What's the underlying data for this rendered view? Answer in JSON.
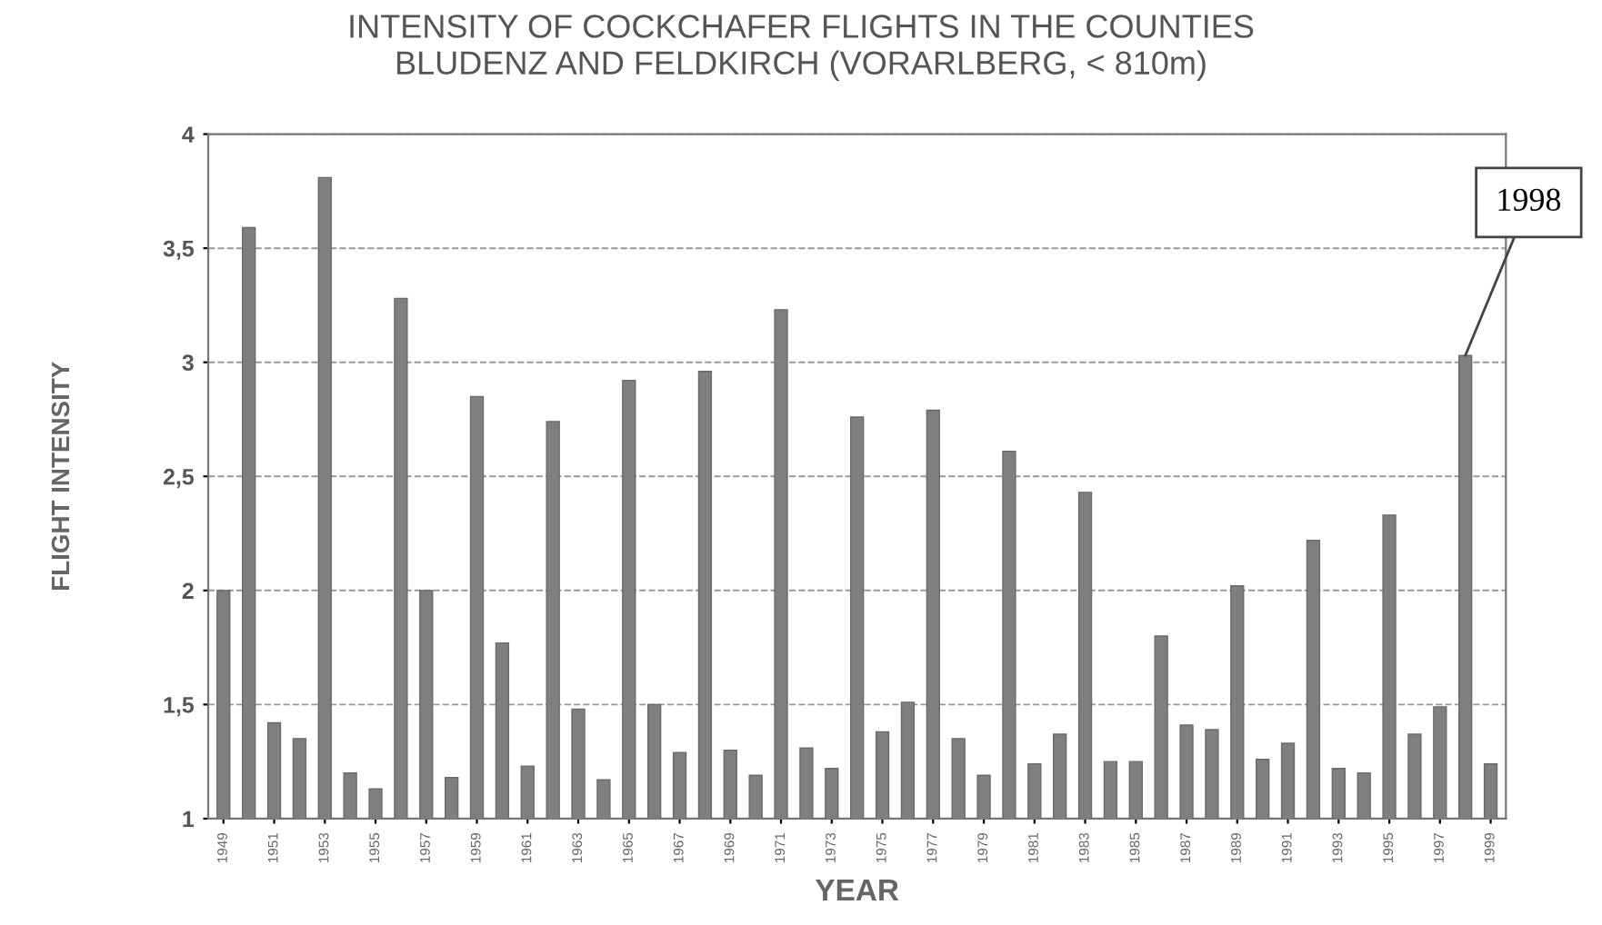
{
  "chart_data": {
    "type": "bar",
    "title": "INTENSITY OF COCKCHAFER FLIGHTS IN THE COUNTIES\nBLUDENZ AND FELDKIRCH (VORARLBERG, < 810m)",
    "xlabel": "YEAR",
    "ylabel": "FLIGHT INTENSITY",
    "x": [
      1949,
      1950,
      1951,
      1952,
      1953,
      1954,
      1955,
      1956,
      1957,
      1958,
      1959,
      1960,
      1961,
      1962,
      1963,
      1964,
      1965,
      1966,
      1967,
      1968,
      1969,
      1970,
      1971,
      1972,
      1973,
      1974,
      1975,
      1976,
      1977,
      1978,
      1979,
      1980,
      1981,
      1982,
      1983,
      1984,
      1985,
      1986,
      1987,
      1988,
      1989,
      1990,
      1991,
      1992,
      1993,
      1994,
      1995,
      1996,
      1997,
      1998,
      1999
    ],
    "values": [
      2.0,
      3.59,
      1.42,
      1.35,
      3.81,
      1.2,
      1.13,
      3.28,
      2.0,
      1.18,
      2.85,
      1.77,
      1.23,
      2.74,
      1.48,
      1.17,
      2.92,
      1.5,
      1.29,
      2.96,
      1.3,
      1.19,
      3.23,
      1.31,
      1.22,
      2.76,
      1.38,
      1.51,
      2.79,
      1.35,
      1.19,
      2.61,
      1.24,
      1.37,
      2.43,
      1.25,
      1.25,
      1.8,
      1.41,
      1.39,
      2.02,
      1.26,
      1.33,
      2.22,
      1.22,
      1.2,
      2.33,
      1.37,
      1.49,
      3.03,
      1.24
    ],
    "color": "#7f7f7f",
    "xlim": [
      1948.4,
      1999.6
    ],
    "xticks": [
      1949,
      1951,
      1953,
      1955,
      1957,
      1959,
      1961,
      1963,
      1965,
      1967,
      1969,
      1971,
      1973,
      1975,
      1977,
      1979,
      1981,
      1983,
      1985,
      1987,
      1989,
      1991,
      1993,
      1995,
      1997,
      1999
    ],
    "ylim": [
      1,
      4
    ],
    "yticks": [
      1,
      {
        "value": 1.5,
        "label": "1,5"
      },
      2,
      {
        "value": 2.5,
        "label": "2,5"
      },
      3,
      {
        "value": 3.5,
        "label": "3,5"
      },
      4
    ],
    "grid": "y",
    "annotations": [
      {
        "text": "1998",
        "x": 1998,
        "y": 3.03
      }
    ]
  }
}
